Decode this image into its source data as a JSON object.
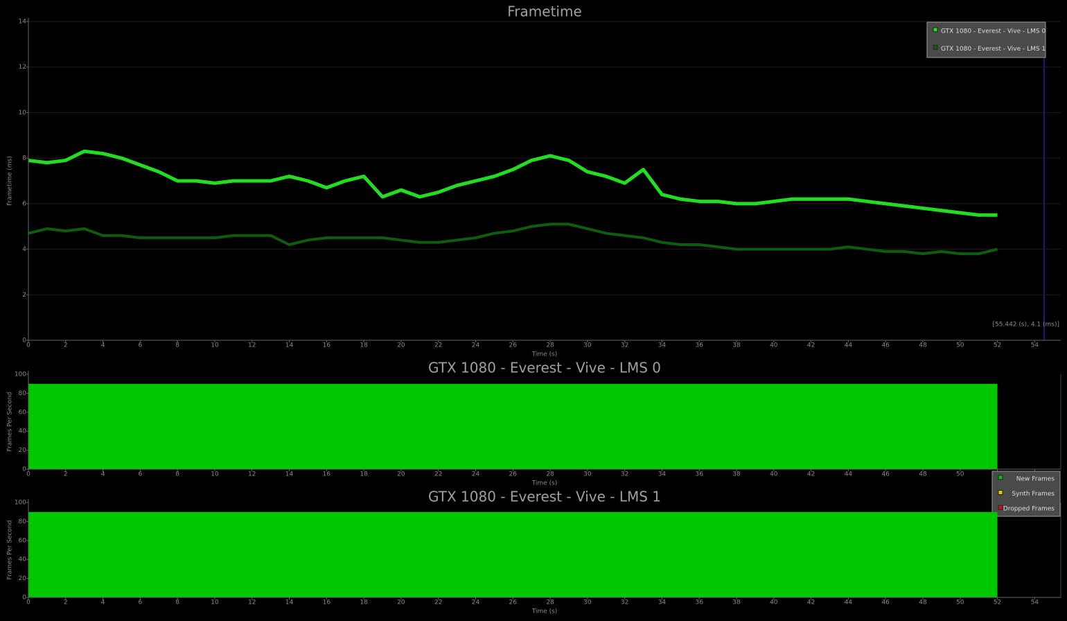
{
  "chart_data": [
    {
      "type": "line",
      "title": "Frametime",
      "xlabel": "Time (s)",
      "ylabel": "Frametime (ms)",
      "x": [
        0,
        1,
        2,
        3,
        4,
        5,
        6,
        7,
        8,
        9,
        10,
        11,
        12,
        13,
        14,
        15,
        16,
        17,
        18,
        19,
        20,
        21,
        22,
        23,
        24,
        25,
        26,
        27,
        28,
        29,
        30,
        31,
        32,
        33,
        34,
        35,
        36,
        37,
        38,
        39,
        40,
        41,
        42,
        43,
        44,
        45,
        46,
        47,
        48,
        49,
        50,
        51,
        52
      ],
      "series": [
        {
          "name": "GTX 1080 - Everest - Vive - LMS 0",
          "color": "#22dd22",
          "values": [
            7.9,
            7.8,
            7.9,
            8.3,
            8.2,
            8.0,
            7.7,
            7.4,
            7.0,
            7.0,
            6.9,
            7.0,
            7.0,
            7.0,
            7.2,
            7.0,
            6.7,
            7.0,
            7.2,
            6.3,
            6.6,
            6.3,
            6.5,
            6.8,
            7.0,
            7.2,
            7.5,
            7.9,
            8.1,
            7.9,
            7.4,
            7.2,
            6.9,
            7.5,
            6.4,
            6.2,
            6.1,
            6.1,
            6.0,
            6.0,
            6.1,
            6.2,
            6.2,
            6.2,
            6.2,
            6.1,
            6.0,
            5.9,
            5.8,
            5.7,
            5.6,
            5.5,
            5.5
          ]
        },
        {
          "name": "GTX 1080 - Everest - Vive - LMS 1",
          "color": "#0e5c0e",
          "values": [
            4.7,
            4.9,
            4.8,
            4.9,
            4.6,
            4.6,
            4.5,
            4.5,
            4.5,
            4.5,
            4.5,
            4.6,
            4.6,
            4.6,
            4.2,
            4.4,
            4.5,
            4.5,
            4.5,
            4.5,
            4.4,
            4.3,
            4.3,
            4.4,
            4.5,
            4.7,
            4.8,
            5.0,
            5.1,
            5.1,
            4.9,
            4.7,
            4.6,
            4.5,
            4.3,
            4.2,
            4.2,
            4.1,
            4.0,
            4.0,
            4.0,
            4.0,
            4.0,
            4.0,
            4.1,
            4.0,
            3.9,
            3.9,
            3.8,
            3.9,
            3.8,
            3.8,
            4.0
          ]
        }
      ],
      "xlim": [
        0,
        55.4
      ],
      "xticks": [
        0,
        2,
        4,
        6,
        8,
        10,
        12,
        14,
        16,
        18,
        20,
        22,
        24,
        26,
        28,
        30,
        32,
        34,
        36,
        38,
        40,
        42,
        44,
        46,
        48,
        50,
        52,
        54
      ],
      "ylim": [
        0,
        14
      ],
      "yticks": [
        0,
        2,
        4,
        6,
        8,
        10,
        12,
        14
      ],
      "grid": true,
      "legend": "upper right",
      "annotation": "[55.442 (s), 4.1 (ms)]"
    },
    {
      "type": "area",
      "title": "GTX 1080 - Everest - Vive - LMS 0",
      "xlabel": "Time (s)",
      "ylabel": "Frames Per Second",
      "x": [
        0,
        52
      ],
      "series": [
        {
          "name": "New Frames",
          "color": "#00c800",
          "values": [
            90,
            90
          ]
        },
        {
          "name": "Synth Frames",
          "color": "#e0d000",
          "values": [
            0,
            0
          ]
        },
        {
          "name": "Dropped Frames",
          "color": "#d01010",
          "values": [
            0,
            0
          ]
        }
      ],
      "xlim": [
        0,
        55.4
      ],
      "xticks": [
        0,
        2,
        4,
        6,
        8,
        10,
        12,
        14,
        16,
        18,
        20,
        22,
        24,
        26,
        28,
        30,
        32,
        34,
        36,
        38,
        40,
        42,
        44,
        46,
        48,
        50,
        52,
        54
      ],
      "ylim": [
        0,
        100
      ],
      "yticks": [
        0,
        20,
        40,
        60,
        80,
        100
      ],
      "legend": "lower right"
    },
    {
      "type": "area",
      "title": "GTX 1080 - Everest - Vive - LMS 1",
      "xlabel": "Time (s)",
      "ylabel": "Frames Per Second",
      "x": [
        0,
        52
      ],
      "series": [
        {
          "color": "#00c800",
          "values": [
            90,
            90
          ]
        },
        {
          "color": "#e0d000",
          "values": [
            0,
            0
          ]
        },
        {
          "color": "#d01010",
          "values": [
            0,
            0
          ]
        }
      ],
      "xlim": [
        0,
        55.4
      ],
      "xticks": [
        0,
        2,
        4,
        6,
        8,
        10,
        12,
        14,
        16,
        18,
        20,
        22,
        24,
        26,
        28,
        30,
        32,
        34,
        36,
        38,
        40,
        42,
        44,
        46,
        48,
        50,
        52,
        54
      ],
      "ylim": [
        0,
        100
      ],
      "yticks": [
        0,
        20,
        40,
        60,
        80,
        100
      ]
    }
  ]
}
